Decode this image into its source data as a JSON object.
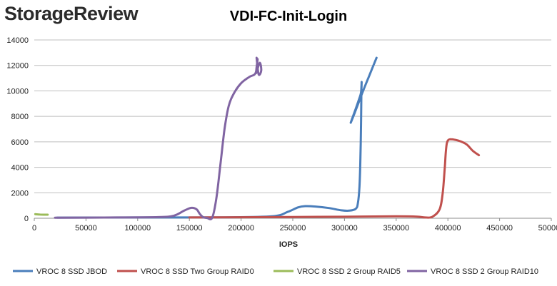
{
  "brand": {
    "part1": "Storage",
    "part2": "Review"
  },
  "chart_data": {
    "type": "line",
    "title": "VDI-FC-Init-Login",
    "xlabel": "IOPS",
    "ylabel": "",
    "xlim": [
      0,
      500000
    ],
    "ylim": [
      0,
      14000
    ],
    "xticks": [
      0,
      50000,
      100000,
      150000,
      200000,
      250000,
      300000,
      350000,
      400000,
      450000,
      500000
    ],
    "yticks": [
      0,
      2000,
      4000,
      6000,
      8000,
      10000,
      12000,
      14000
    ],
    "grid": {
      "x": false,
      "y": true
    },
    "legend_position": "bottom",
    "series": [
      {
        "name": "VROC 8 SSD JBOD",
        "color": "#4a7ebb",
        "x": [
          22000,
          100000,
          180000,
          230000,
          245000,
          255000,
          262000,
          272000,
          285000,
          297000,
          305000,
          311000,
          313000,
          314500,
          315500,
          316000,
          316300,
          316500,
          316600,
          316400,
          315800,
          313500,
          310000,
          306000,
          310000,
          318000,
          325000,
          331000
        ],
        "y": [
          50,
          60,
          70,
          150,
          500,
          850,
          950,
          920,
          800,
          620,
          600,
          750,
          1200,
          2500,
          5000,
          7500,
          9500,
          10400,
          10700,
          10300,
          9800,
          9200,
          8400,
          7500,
          8300,
          10000,
          11400,
          12600
        ]
      },
      {
        "name": "VROC 8 SSD Two Group RAID0",
        "color": "#c0504d",
        "x": [
          150000,
          200000,
          250000,
          300000,
          350000,
          370000,
          378000,
          385000,
          392000,
          395000,
          397000,
          398000,
          399000,
          400500,
          403000,
          410000,
          418000,
          424000,
          430000
        ],
        "y": [
          60,
          80,
          100,
          120,
          150,
          130,
          60,
          120,
          700,
          2000,
          4000,
          5200,
          5900,
          6150,
          6200,
          6100,
          5800,
          5300,
          4950
        ]
      },
      {
        "name": "VROC 8 SSD 2 Group RAID5",
        "color": "#9bbb59",
        "x": [
          1000,
          5000,
          9000,
          13000
        ],
        "y": [
          320,
          290,
          280,
          280
        ]
      },
      {
        "name": "VROC 8 SSD 2 Group RAID10",
        "color": "#8064a2",
        "x": [
          20000,
          80000,
          120000,
          135000,
          145000,
          152000,
          157000,
          160000,
          163000,
          167000,
          172000,
          176000,
          180000,
          184000,
          188000,
          193000,
          200000,
          208000,
          214000,
          216000,
          214500,
          218000,
          219500,
          217000,
          215000
        ],
        "y": [
          40,
          60,
          90,
          200,
          600,
          820,
          700,
          350,
          100,
          20,
          40,
          1500,
          4200,
          7000,
          8800,
          9800,
          10600,
          11100,
          11400,
          12500,
          11400,
          12200,
          11600,
          11300,
          12600
        ]
      }
    ]
  }
}
